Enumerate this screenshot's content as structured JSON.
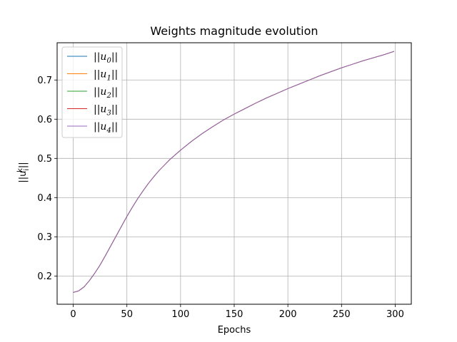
{
  "chart_data": {
    "type": "line",
    "title": "Weights magnitude evolution",
    "xlabel": "Epochs",
    "ylabel": {
      "base": "||u",
      "sub": "i",
      "sup": "k",
      "tail": "||"
    },
    "xlim": [
      -15,
      315
    ],
    "ylim": [
      0.128,
      0.795
    ],
    "xticks": [
      0,
      50,
      100,
      150,
      200,
      250,
      300
    ],
    "yticks": [
      0.2,
      0.3,
      0.4,
      0.5,
      0.6,
      0.7
    ],
    "xtick_labels": [
      "0",
      "50",
      "100",
      "150",
      "200",
      "250",
      "300"
    ],
    "ytick_labels": [
      "0.2",
      "0.3",
      "0.4",
      "0.5",
      "0.6",
      "0.7"
    ],
    "grid": true,
    "legend_position": "top-left",
    "series": [
      {
        "name": {
          "base": "||u",
          "sub": "0",
          "tail": "||"
        },
        "color": "#1f77b4"
      },
      {
        "name": {
          "base": "||u",
          "sub": "1",
          "tail": "||"
        },
        "color": "#ff7f0e"
      },
      {
        "name": {
          "base": "||u",
          "sub": "2",
          "tail": "||"
        },
        "color": "#2ca02c"
      },
      {
        "name": {
          "base": "||u",
          "sub": "3",
          "tail": "||"
        },
        "color": "#d62728"
      },
      {
        "name": {
          "base": "||u",
          "sub": "4",
          "tail": "||"
        },
        "color": "#9467bd"
      }
    ],
    "x": [
      0,
      5,
      10,
      15,
      20,
      25,
      30,
      35,
      40,
      45,
      50,
      55,
      60,
      65,
      70,
      75,
      80,
      90,
      100,
      110,
      120,
      130,
      140,
      150,
      160,
      170,
      180,
      190,
      200,
      210,
      220,
      230,
      240,
      250,
      260,
      270,
      280,
      290,
      299
    ],
    "values": [
      0.158,
      0.162,
      0.172,
      0.188,
      0.207,
      0.228,
      0.252,
      0.277,
      0.302,
      0.327,
      0.352,
      0.375,
      0.397,
      0.417,
      0.436,
      0.453,
      0.469,
      0.497,
      0.521,
      0.543,
      0.563,
      0.581,
      0.598,
      0.613,
      0.627,
      0.641,
      0.654,
      0.666,
      0.678,
      0.689,
      0.7,
      0.711,
      0.721,
      0.731,
      0.74,
      0.749,
      0.757,
      0.765,
      0.773
    ]
  }
}
